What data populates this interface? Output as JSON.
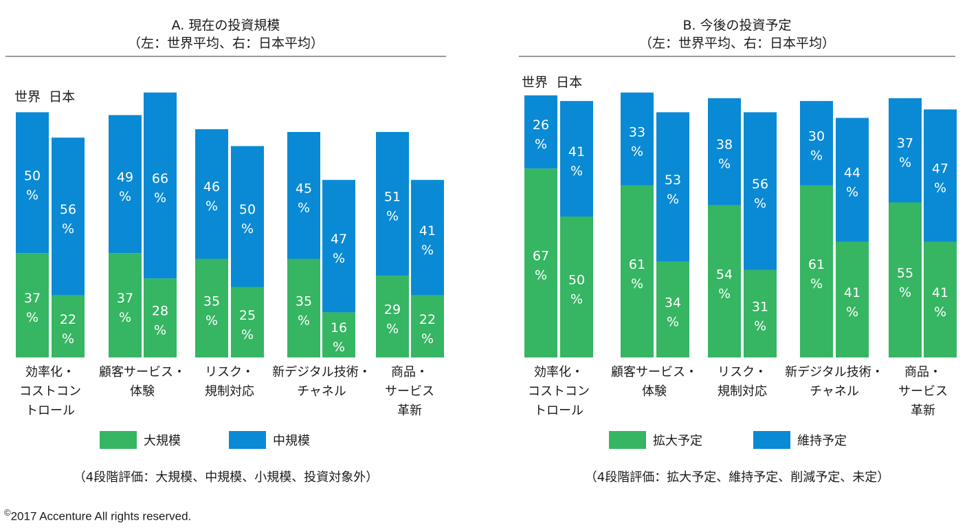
{
  "colors": {
    "large": "#36b563",
    "medium": "#0a8ad4",
    "rule": "#9a9a9a",
    "label_text": "#ffffff"
  },
  "chart_data": [
    {
      "type": "bar",
      "stacked": true,
      "title": "A. 現在の投資規模",
      "subtitle": "（左：世界平均、右：日本平均）",
      "group_header": [
        "世界",
        "日本"
      ],
      "categories": [
        "効率化・\nコストコン\nトロール",
        "顧客サービス・\n体験",
        "リスク・\n規制対応",
        "新デジタル技術・\nチャネル",
        "商品・\nサービス\n革新"
      ],
      "groups": [
        "世界",
        "日本"
      ],
      "series": [
        {
          "name": "大規模",
          "color": "#36b563",
          "values": {
            "世界": [
              37,
              37,
              35,
              35,
              29
            ],
            "日本": [
              22,
              28,
              25,
              16,
              22
            ]
          }
        },
        {
          "name": "中規模",
          "color": "#0a8ad4",
          "values": {
            "世界": [
              50,
              49,
              46,
              45,
              51
            ],
            "日本": [
              56,
              66,
              50,
              47,
              41
            ]
          }
        }
      ],
      "value_suffix": "%",
      "legend": [
        "大規模",
        "中規模"
      ],
      "legend_position": "bottom",
      "note": "（4段階評価：大規模、中規模、小規模、投資対象外）",
      "ylim": [
        0,
        100
      ],
      "grid": false
    },
    {
      "type": "bar",
      "stacked": true,
      "title": "B. 今後の投資予定",
      "subtitle": "（左：世界平均、右：日本平均）",
      "group_header": [
        "世界",
        "日本"
      ],
      "categories": [
        "効率化・\nコストコン\nトロール",
        "顧客サービス・\n体験",
        "リスク・\n規制対応",
        "新デジタル技術・\nチャネル",
        "商品・\nサービス\n革新"
      ],
      "groups": [
        "世界",
        "日本"
      ],
      "series": [
        {
          "name": "拡大予定",
          "color": "#36b563",
          "values": {
            "世界": [
              67,
              61,
              54,
              61,
              55
            ],
            "日本": [
              50,
              34,
              31,
              41,
              41
            ]
          }
        },
        {
          "name": "維持予定",
          "color": "#0a8ad4",
          "values": {
            "世界": [
              26,
              33,
              38,
              30,
              37
            ],
            "日本": [
              41,
              53,
              56,
              44,
              47
            ]
          }
        }
      ],
      "value_suffix": "%",
      "legend": [
        "拡大予定",
        "維持予定"
      ],
      "legend_position": "bottom",
      "note": "（4段階評価：拡大予定、維持予定、削減予定、未定）",
      "ylim": [
        0,
        100
      ],
      "grid": false
    }
  ],
  "panel_a": {
    "title_line1": "A. 現在の投資規模",
    "title_line2": "（左：世界平均、右：日本平均）",
    "header": "世界  日本",
    "categories": [
      "効率化・\nコストコン\nトロール",
      "顧客サービス・\n体験",
      "リスク・\n規制対応",
      "新デジタル技術・\nチャネル",
      "商品・\nサービス\n革新"
    ],
    "legend": [
      "大規模",
      "中規模"
    ],
    "note": "（4段階評価：大規模、中規模、小規模、投資対象外）"
  },
  "panel_b": {
    "title_line1": "B. 今後の投資予定",
    "title_line2": "（左：世界平均、右：日本平均）",
    "header": "世界  日本",
    "categories": [
      "効率化・\nコストコン\nトロール",
      "顧客サービス・\n体験",
      "リスク・\n規制対応",
      "新デジタル技術・\nチャネル",
      "商品・\nサービス\n革新"
    ],
    "legend": [
      "拡大予定",
      "維持予定"
    ],
    "note": "（4段階評価：拡大予定、維持予定、削減予定、未定）"
  },
  "footer": {
    "copyright_symbol": "©",
    "copyright_text": "2017 Accenture All rights reserved."
  }
}
